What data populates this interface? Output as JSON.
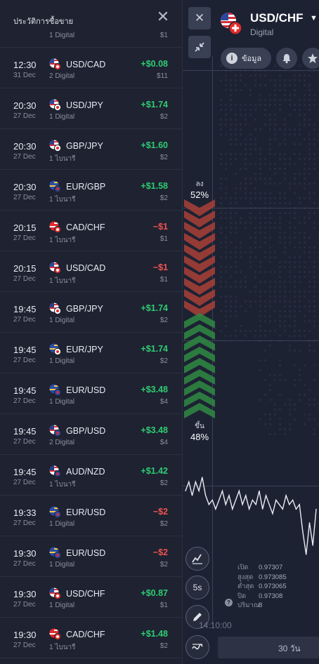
{
  "history": {
    "title": "ประวัติการซื้อขาย",
    "partial_row": {
      "sub": "1 Digital",
      "invest": "$1"
    },
    "rows": [
      {
        "time": "12:30",
        "date": "31 Dec",
        "pair": "USD/CAD",
        "sub": "2 Digital",
        "pnl": "+$0.08",
        "invest": "$11",
        "result": "win",
        "flag": "usd-cad"
      },
      {
        "time": "20:30",
        "date": "27 Dec",
        "pair": "USD/JPY",
        "sub": "1 Digital",
        "pnl": "+$1.74",
        "invest": "$2",
        "result": "win",
        "flag": "usd-jpy"
      },
      {
        "time": "20:30",
        "date": "27 Dec",
        "pair": "GBP/JPY",
        "sub": "1 ไบนารี",
        "pnl": "+$1.60",
        "invest": "$2",
        "result": "win",
        "flag": "gbp-jpy"
      },
      {
        "time": "20:30",
        "date": "27 Dec",
        "pair": "EUR/GBP",
        "sub": "1 ไบนารี",
        "pnl": "+$1.58",
        "invest": "$2",
        "result": "win",
        "flag": "eur-gbp"
      },
      {
        "time": "20:15",
        "date": "27 Dec",
        "pair": "CAD/CHF",
        "sub": "1 ไบนารี",
        "pnl": "−$1",
        "invest": "$1",
        "result": "loss",
        "flag": "cad-chf"
      },
      {
        "time": "20:15",
        "date": "27 Dec",
        "pair": "USD/CAD",
        "sub": "1 ไบนารี",
        "pnl": "−$1",
        "invest": "$1",
        "result": "loss",
        "flag": "usd-cad"
      },
      {
        "time": "19:45",
        "date": "27 Dec",
        "pair": "GBP/JPY",
        "sub": "1 Digital",
        "pnl": "+$1.74",
        "invest": "$2",
        "result": "win",
        "flag": "gbp-jpy"
      },
      {
        "time": "19:45",
        "date": "27 Dec",
        "pair": "EUR/JPY",
        "sub": "1 Digital",
        "pnl": "+$1.74",
        "invest": "$2",
        "result": "win",
        "flag": "eur-jpy"
      },
      {
        "time": "19:45",
        "date": "27 Dec",
        "pair": "EUR/USD",
        "sub": "1 Digital",
        "pnl": "+$3.48",
        "invest": "$4",
        "result": "win",
        "flag": "eur-usd"
      },
      {
        "time": "19:45",
        "date": "27 Dec",
        "pair": "GBP/USD",
        "sub": "2 Digital",
        "pnl": "+$3.48",
        "invest": "$4",
        "result": "win",
        "flag": "gbp-usd"
      },
      {
        "time": "19:45",
        "date": "27 Dec",
        "pair": "AUD/NZD",
        "sub": "1 ไบนารี",
        "pnl": "+$1.42",
        "invest": "$2",
        "result": "win",
        "flag": "aud-nzd"
      },
      {
        "time": "19:33",
        "date": "27 Dec",
        "pair": "EUR/USD",
        "sub": "1 Digital",
        "pnl": "−$2",
        "invest": "$2",
        "result": "loss",
        "flag": "eur-usd"
      },
      {
        "time": "19:30",
        "date": "27 Dec",
        "pair": "EUR/USD",
        "sub": "1 Digital",
        "pnl": "−$2",
        "invest": "$2",
        "result": "loss",
        "flag": "eur-usd"
      },
      {
        "time": "19:30",
        "date": "27 Dec",
        "pair": "USD/CHF",
        "sub": "1 Digital",
        "pnl": "+$0.87",
        "invest": "$1",
        "result": "win",
        "flag": "usd-chf"
      },
      {
        "time": "19:30",
        "date": "27 Dec",
        "pair": "CAD/CHF",
        "sub": "1 ไบนารี",
        "pnl": "+$1.48",
        "invest": "$2",
        "result": "win",
        "flag": "cad-chf"
      }
    ]
  },
  "asset": {
    "name": "USD/CHF",
    "type": "Digital",
    "info_label": "ข้อมูล"
  },
  "sentiment": {
    "down_label": "ลง",
    "down_pct": "52%",
    "up_label": "ขึ้น",
    "up_pct": "48%"
  },
  "ohlc": [
    {
      "label": "เปิด",
      "value": "0.97307"
    },
    {
      "label": "สูงสุด",
      "value": "0.973085"
    },
    {
      "label": "ต่ำสุด",
      "value": "0.973065"
    },
    {
      "label": "ปิด",
      "value": "0.97308"
    },
    {
      "label": "ปริมาณ",
      "value": "8"
    }
  ],
  "help_mark": "?",
  "timeframe_label": "5s",
  "time_axis_label": "14:10:00",
  "period_label": "30 วัน",
  "chart_data": {
    "type": "line",
    "x": [
      1,
      2,
      3,
      4,
      5,
      6,
      7,
      8,
      9,
      10,
      11,
      12,
      13,
      14,
      15,
      16,
      17,
      18,
      19,
      20,
      21,
      22,
      23,
      24,
      25,
      26,
      27,
      28,
      29,
      30,
      31,
      32,
      33,
      34,
      35,
      36,
      37,
      38,
      39,
      40
    ],
    "values": [
      0.97309,
      0.97311,
      0.97308,
      0.97311,
      0.97309,
      0.97312,
      0.97308,
      0.97306,
      0.97307,
      0.97305,
      0.97307,
      0.97309,
      0.97306,
      0.97308,
      0.97305,
      0.97307,
      0.97309,
      0.97306,
      0.97308,
      0.97305,
      0.97307,
      0.97306,
      0.97309,
      0.97305,
      0.97308,
      0.97306,
      0.97304,
      0.97307,
      0.97306,
      0.97305,
      0.97308,
      0.97306,
      0.97307,
      0.97305,
      0.97306,
      0.973,
      0.97295,
      0.97302,
      0.97297,
      0.97305
    ]
  },
  "colors": {
    "win": "#2ecc71",
    "loss": "#ef5350",
    "accent_down": "#a93f37",
    "accent_up": "#2f8a43"
  }
}
